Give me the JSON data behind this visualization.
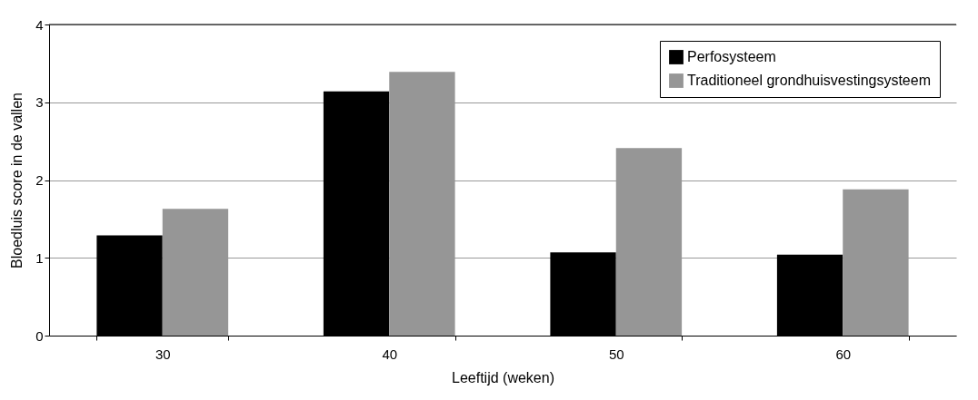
{
  "chart_data": {
    "type": "bar",
    "xlabel": "Leeftijd (weken)",
    "ylabel": "Bloedluis score in de vallen",
    "categories": [
      "30",
      "40",
      "50",
      "60"
    ],
    "series": [
      {
        "name": "Perfosysteem",
        "color": "#000000",
        "values": [
          1.29,
          3.14,
          1.07,
          1.04
        ]
      },
      {
        "name": "Traditioneel grondhuisvestingsysteem",
        "color": "#969696",
        "values": [
          1.63,
          3.39,
          2.41,
          1.88
        ]
      }
    ],
    "ylim": [
      0,
      4
    ],
    "yticks": [
      0,
      1,
      2,
      3,
      4
    ],
    "grid": "y",
    "legend": "top right"
  }
}
